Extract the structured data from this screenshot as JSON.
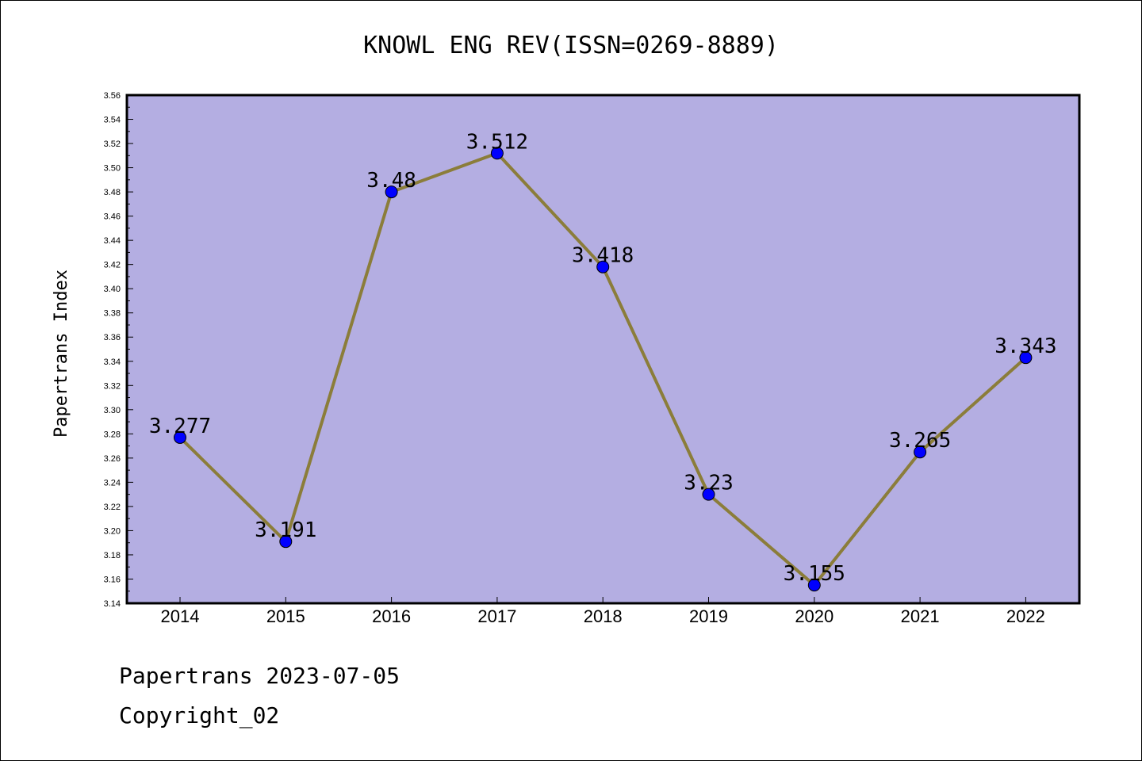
{
  "chart_data": {
    "type": "line",
    "title": "KNOWL ENG REV(ISSN=0269-8889)",
    "ylabel": "Papertrans Index",
    "xlabel": "",
    "categories": [
      "2014",
      "2015",
      "2016",
      "2017",
      "2018",
      "2019",
      "2020",
      "2021",
      "2022"
    ],
    "values": [
      3.277,
      3.191,
      3.48,
      3.512,
      3.418,
      3.23,
      3.155,
      3.265,
      3.343
    ],
    "data_labels": [
      "3.277",
      "3.191",
      "3.48",
      "3.512",
      "3.418",
      "3.23",
      "3.155",
      "3.265",
      "3.343"
    ],
    "ylim": [
      3.14,
      3.56
    ],
    "yticks": [
      "3.14",
      "3.16",
      "3.18",
      "3.20",
      "3.22",
      "3.24",
      "3.26",
      "3.28",
      "3.30",
      "3.32",
      "3.34",
      "3.36",
      "3.38",
      "3.40",
      "3.42",
      "3.44",
      "3.46",
      "3.48",
      "3.50",
      "3.52",
      "3.54",
      "3.56"
    ],
    "grid": false,
    "colors": {
      "plot_background": "#b4aee2",
      "line": "#8b7d3a",
      "marker": "#0000ff"
    }
  },
  "footer": {
    "date_line": "Papertrans 2023-07-05",
    "copyright_line": "Copyright_02"
  }
}
